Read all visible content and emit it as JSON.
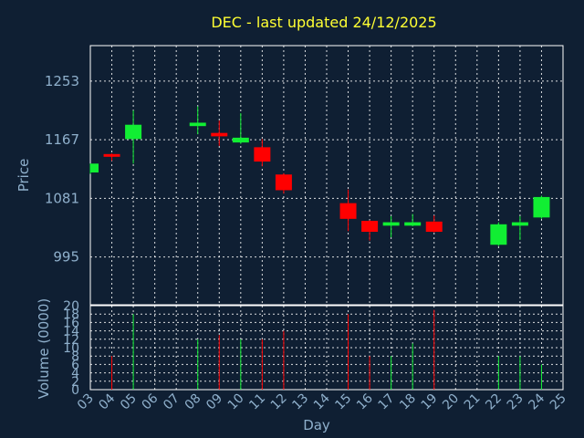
{
  "chart_data": [
    {
      "type": "candlestick",
      "title": "DEC - last updated 24/12/2025",
      "ylabel": "Price",
      "xlabel": "",
      "ylim": [
        925,
        1305
      ],
      "yticks": [
        995,
        1081,
        1167,
        1253
      ],
      "xlim": [
        3,
        25
      ],
      "grid": true,
      "colors": {
        "up": "#11ee33",
        "down": "#ff0000",
        "background": "#0f1f33",
        "axis": "#8fb0cc",
        "title": "#ffff33"
      },
      "candles": [
        {
          "day": 3,
          "open": 1119,
          "high": 1132,
          "low": 1117,
          "close": 1132
        },
        {
          "day": 4,
          "open": 1146,
          "high": 1147,
          "low": 1136,
          "close": 1142
        },
        {
          "day": 5,
          "open": 1168,
          "high": 1210,
          "low": 1132,
          "close": 1189
        },
        {
          "day": 8,
          "open": 1187,
          "high": 1216,
          "low": 1175,
          "close": 1192
        },
        {
          "day": 9,
          "open": 1177,
          "high": 1195,
          "low": 1158,
          "close": 1172
        },
        {
          "day": 10,
          "open": 1163,
          "high": 1206,
          "low": 1161,
          "close": 1170
        },
        {
          "day": 11,
          "open": 1156,
          "high": 1168,
          "low": 1128,
          "close": 1135
        },
        {
          "day": 12,
          "open": 1116,
          "high": 1118,
          "low": 1088,
          "close": 1093
        },
        {
          "day": 15,
          "open": 1074,
          "high": 1094,
          "low": 1033,
          "close": 1051
        },
        {
          "day": 16,
          "open": 1048,
          "high": 1049,
          "low": 1019,
          "close": 1032
        },
        {
          "day": 17,
          "open": 1041,
          "high": 1055,
          "low": 1024,
          "close": 1046
        },
        {
          "day": 18,
          "open": 1041,
          "high": 1058,
          "low": 1040,
          "close": 1046
        },
        {
          "day": 19,
          "open": 1047,
          "high": 1056,
          "low": 1031,
          "close": 1032
        },
        {
          "day": 22,
          "open": 1013,
          "high": 1046,
          "low": 1011,
          "close": 1043
        },
        {
          "day": 23,
          "open": 1041,
          "high": 1055,
          "low": 1020,
          "close": 1046
        },
        {
          "day": 24,
          "open": 1053,
          "high": 1085,
          "low": 1051,
          "close": 1083
        }
      ]
    },
    {
      "type": "bar",
      "ylabel": "Volume (0000)",
      "xlabel": "Day",
      "ylim": [
        0,
        20
      ],
      "yticks": [
        0,
        2,
        4,
        6,
        8,
        10,
        12,
        14,
        16,
        18,
        20
      ],
      "xlim": [
        3,
        25
      ],
      "x_ticks": [
        "03",
        "04",
        "05",
        "06",
        "07",
        "08",
        "09",
        "10",
        "11",
        "12",
        "13",
        "14",
        "15",
        "16",
        "17",
        "18",
        "19",
        "20",
        "21",
        "22",
        "23",
        "24",
        "25"
      ],
      "grid": true,
      "bars": [
        {
          "day": 3,
          "value": 0,
          "color": "#11ee33"
        },
        {
          "day": 4,
          "value": 8,
          "color": "#ff0000"
        },
        {
          "day": 5,
          "value": 18,
          "color": "#11ee33"
        },
        {
          "day": 8,
          "value": 12,
          "color": "#11ee33"
        },
        {
          "day": 9,
          "value": 13,
          "color": "#ff0000"
        },
        {
          "day": 10,
          "value": 12,
          "color": "#11ee33"
        },
        {
          "day": 11,
          "value": 12,
          "color": "#ff0000"
        },
        {
          "day": 12,
          "value": 14,
          "color": "#ff0000"
        },
        {
          "day": 15,
          "value": 18,
          "color": "#ff0000"
        },
        {
          "day": 16,
          "value": 8,
          "color": "#ff0000"
        },
        {
          "day": 17,
          "value": 8,
          "color": "#11ee33"
        },
        {
          "day": 18,
          "value": 11,
          "color": "#11ee33"
        },
        {
          "day": 19,
          "value": 19,
          "color": "#ff0000"
        },
        {
          "day": 22,
          "value": 8,
          "color": "#11ee33"
        },
        {
          "day": 23,
          "value": 8,
          "color": "#11ee33"
        },
        {
          "day": 24,
          "value": 6,
          "color": "#11ee33"
        }
      ]
    }
  ]
}
